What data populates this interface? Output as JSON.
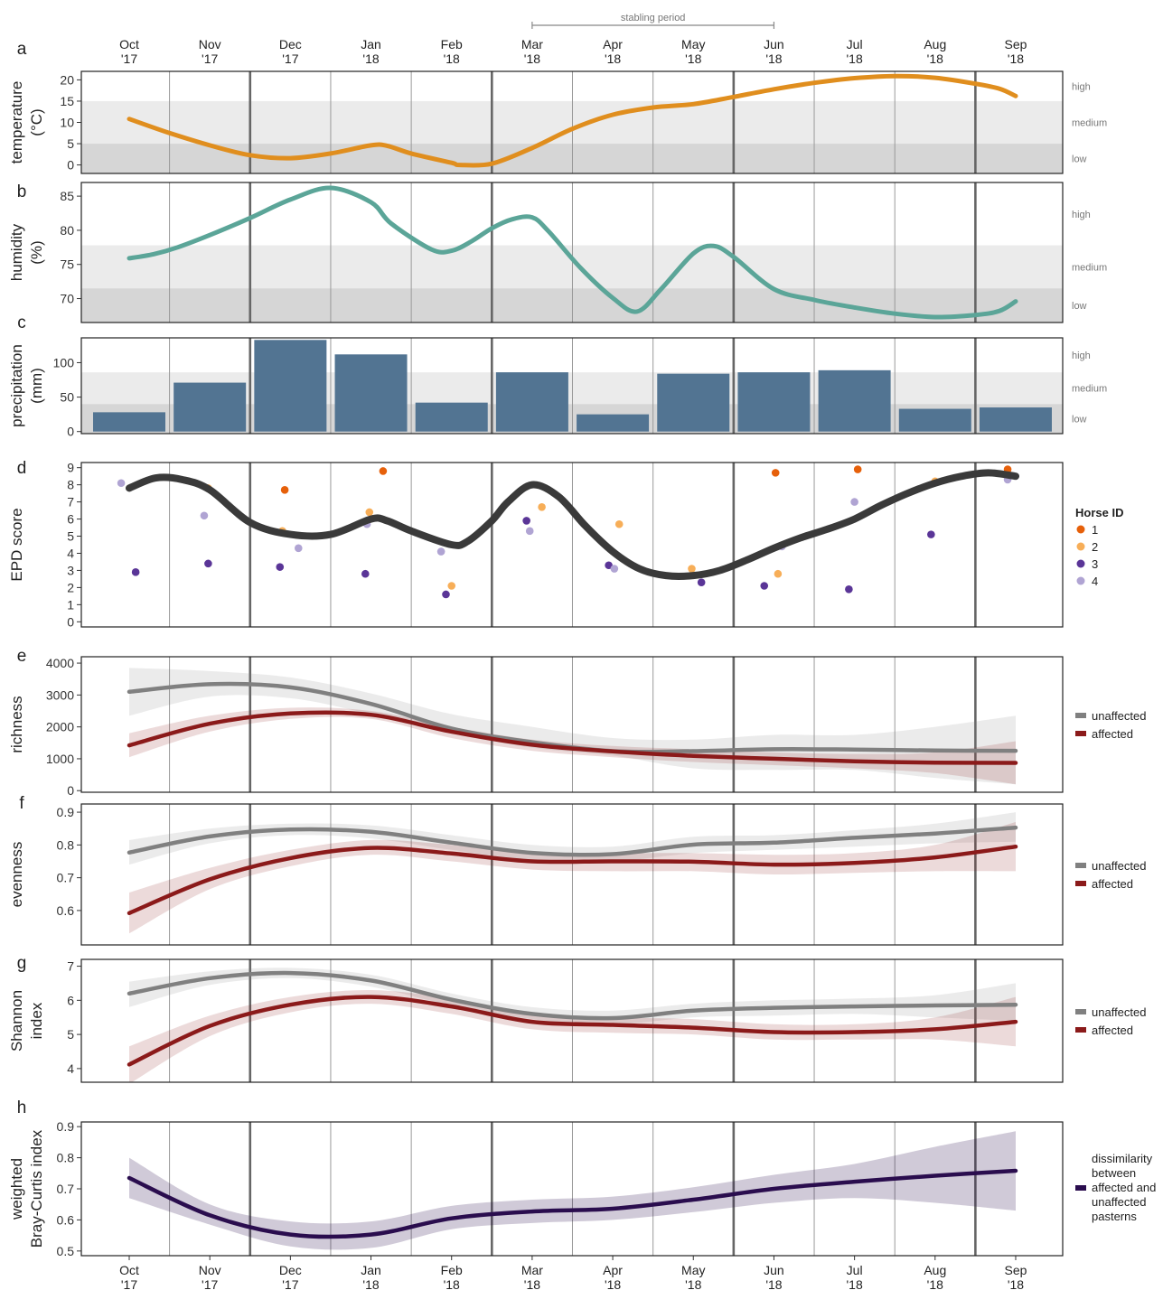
{
  "months": [
    {
      "m": "Oct",
      "y": "'17"
    },
    {
      "m": "Nov",
      "y": "'17"
    },
    {
      "m": "Dec",
      "y": "'17"
    },
    {
      "m": "Jan",
      "y": "'18"
    },
    {
      "m": "Feb",
      "y": "'18"
    },
    {
      "m": "Mar",
      "y": "'18"
    },
    {
      "m": "Apr",
      "y": "'18"
    },
    {
      "m": "May",
      "y": "'18"
    },
    {
      "m": "Jun",
      "y": "'18"
    },
    {
      "m": "Jul",
      "y": "'18"
    },
    {
      "m": "Aug",
      "y": "'18"
    },
    {
      "m": "Sep",
      "y": "'18"
    }
  ],
  "stabling": {
    "label": "stabling period",
    "from": 5,
    "to": 8
  },
  "season_boundaries": [
    1.5,
    4.5,
    7.5,
    10.5
  ],
  "colors": {
    "temperature": "#E08E1E",
    "humidity": "#5BA598",
    "precipitation": "#527492",
    "epd": "#3a3a3a",
    "unaffected": "#808080",
    "affected": "#8B1A1A",
    "braycurtis": "#2A0D4E",
    "horse1": "#E6600A",
    "horse2": "#F7AE58",
    "horse3": "#5A3597",
    "horse4": "#B0A4D3",
    "band_high": "#ffffff",
    "band_medium": "#ebebeb",
    "band_low": "#d6d6d6"
  },
  "chart_data": [
    {
      "panel": "a",
      "type": "line",
      "ylabel": [
        "temperature",
        "(°C)"
      ],
      "ylim": [
        -2,
        22
      ],
      "yticks": [
        0,
        5,
        10,
        15,
        20
      ],
      "bands": [
        {
          "label": "high",
          "from": 15,
          "to": 22
        },
        {
          "label": "medium",
          "from": 5,
          "to": 15
        },
        {
          "label": "low",
          "from": -2,
          "to": 5
        }
      ],
      "x": [
        0,
        0.5,
        1,
        1.5,
        2,
        2.5,
        3,
        3.2,
        3.5,
        4,
        4.1,
        4.5,
        5,
        5.5,
        6,
        6.5,
        7,
        7.5,
        8,
        8.5,
        9,
        9.5,
        10,
        10.5,
        10.8,
        11
      ],
      "y": [
        10.8,
        7.5,
        4.6,
        2.3,
        1.6,
        2.7,
        4.6,
        4.5,
        2.7,
        0.5,
        0,
        0.3,
        4.0,
        8.5,
        11.8,
        13.5,
        14.3,
        16.0,
        17.8,
        19.3,
        20.4,
        20.9,
        20.5,
        19.1,
        17.9,
        16.2
      ],
      "color": "temperature"
    },
    {
      "panel": "b",
      "type": "line",
      "ylabel": [
        "humidity",
        "(%)"
      ],
      "ylim": [
        66.5,
        87
      ],
      "yticks": [
        70,
        75,
        80,
        85
      ],
      "bands": [
        {
          "label": "high",
          "from": 77.8,
          "to": 87
        },
        {
          "label": "medium",
          "from": 71.5,
          "to": 77.8
        },
        {
          "label": "low",
          "from": 66.5,
          "to": 71.5
        }
      ],
      "x": [
        0,
        0.3,
        0.6,
        1,
        1.5,
        2,
        2.5,
        3,
        3.25,
        3.75,
        4,
        4.25,
        4.5,
        4.75,
        5,
        5.2,
        5.6,
        6,
        6.3,
        6.6,
        7,
        7.25,
        7.5,
        8,
        8.5,
        9,
        9.5,
        10,
        10.5,
        10.8,
        11
      ],
      "y": [
        75.9,
        76.5,
        77.5,
        79.3,
        81.8,
        84.5,
        86.2,
        84.1,
        81.0,
        77.2,
        77.0,
        78.4,
        80.3,
        81.6,
        81.9,
        79.9,
        74.5,
        70.1,
        68.1,
        71.4,
        76.6,
        77.7,
        76.1,
        71.4,
        69.8,
        68.7,
        67.8,
        67.3,
        67.6,
        68.2,
        69.6
      ],
      "color": "humidity"
    },
    {
      "panel": "c",
      "type": "bar",
      "ylabel": [
        "precipitation",
        "(mm)"
      ],
      "ylim": [
        -3,
        136
      ],
      "yticks": [
        0,
        50,
        100
      ],
      "bands": [
        {
          "label": "high",
          "from": 86,
          "to": 136
        },
        {
          "label": "medium",
          "from": 40,
          "to": 86
        },
        {
          "label": "low",
          "from": -3,
          "to": 40
        }
      ],
      "values": [
        28,
        71,
        133,
        112,
        42,
        86,
        25,
        84,
        86,
        89,
        33,
        35
      ],
      "color": "precipitation"
    },
    {
      "panel": "d",
      "type": "scatter",
      "ylabel": [
        "EPD score"
      ],
      "ylim": [
        -0.3,
        9.3
      ],
      "yticks": [
        0,
        1,
        2,
        3,
        4,
        5,
        6,
        7,
        8,
        9
      ],
      "legend_title": "Horse ID",
      "horses": [
        {
          "name": "1",
          "color": "horse1",
          "points": [
            [
              1.93,
              7.7
            ],
            [
              3.15,
              8.8
            ],
            [
              8.02,
              8.7
            ],
            [
              9.04,
              8.9
            ],
            [
              10.9,
              8.9
            ]
          ]
        },
        {
          "name": "2",
          "color": "horse2",
          "points": [
            [
              0.98,
              7.8
            ],
            [
              1.9,
              5.3
            ],
            [
              2.98,
              6.4
            ],
            [
              4.0,
              2.1
            ],
            [
              5.12,
              6.7
            ],
            [
              6.08,
              5.7
            ],
            [
              6.98,
              3.1
            ],
            [
              8.05,
              2.8
            ],
            [
              10.0,
              8.2
            ]
          ]
        },
        {
          "name": "3",
          "color": "horse3",
          "points": [
            [
              0.08,
              2.9
            ],
            [
              0.98,
              3.4
            ],
            [
              1.87,
              3.2
            ],
            [
              2.93,
              2.8
            ],
            [
              3.93,
              1.6
            ],
            [
              4.93,
              5.9
            ],
            [
              5.95,
              3.3
            ],
            [
              7.1,
              2.3
            ],
            [
              7.88,
              2.1
            ],
            [
              8.93,
              1.9
            ],
            [
              9.95,
              5.1
            ]
          ]
        },
        {
          "name": "4",
          "color": "horse4",
          "points": [
            [
              -0.1,
              8.1
            ],
            [
              0.93,
              6.2
            ],
            [
              2.1,
              4.3
            ],
            [
              2.95,
              5.7
            ],
            [
              3.87,
              4.1
            ],
            [
              4.97,
              5.3
            ],
            [
              6.02,
              3.1
            ],
            [
              8.1,
              4.4
            ],
            [
              9.0,
              7.0
            ],
            [
              10.9,
              8.3
            ]
          ]
        }
      ],
      "trend_x": [
        0,
        0.33,
        0.66,
        1,
        1.5,
        2,
        2.5,
        3,
        3.2,
        3.5,
        4,
        4.2,
        4.5,
        4.7,
        5,
        5.33,
        5.66,
        6,
        6.33,
        6.66,
        7,
        7.33,
        7.66,
        8,
        8.33,
        8.66,
        9,
        9.33,
        9.66,
        10,
        10.33,
        10.66,
        11
      ],
      "trend_y": [
        7.8,
        8.4,
        8.3,
        7.7,
        5.8,
        5.1,
        5.1,
        6.0,
        5.9,
        5.3,
        4.5,
        4.7,
        5.9,
        7.0,
        8.0,
        7.3,
        5.6,
        4.1,
        3.1,
        2.7,
        2.7,
        3.0,
        3.6,
        4.3,
        4.9,
        5.4,
        6.0,
        6.8,
        7.5,
        8.1,
        8.5,
        8.7,
        8.5
      ],
      "color": "epd"
    },
    {
      "panel": "e",
      "type": "line",
      "ylabel": [
        "richness"
      ],
      "ylim": [
        -50,
        4200
      ],
      "yticks": [
        0,
        1000,
        2000,
        3000,
        4000
      ],
      "x": [
        0,
        1,
        2,
        3,
        4,
        5,
        6,
        7,
        8,
        9,
        10,
        11
      ],
      "series": [
        {
          "name": "unaffected",
          "color": "unaffected",
          "values": [
            3100,
            3340,
            3240,
            2720,
            1950,
            1520,
            1240,
            1240,
            1300,
            1290,
            1260,
            1250
          ],
          "lower": [
            2350,
            2950,
            2900,
            2400,
            1800,
            1350,
            1100,
            700,
            650,
            650,
            400,
            200
          ],
          "upper": [
            3850,
            3750,
            3550,
            3050,
            2400,
            2000,
            1650,
            1600,
            1750,
            1750,
            2000,
            2350
          ]
        },
        {
          "name": "affected",
          "color": "affected",
          "values": [
            1420,
            2100,
            2420,
            2380,
            1850,
            1440,
            1230,
            1090,
            1000,
            920,
            880,
            870
          ],
          "lower": [
            1050,
            1850,
            2250,
            2250,
            1650,
            1250,
            1050,
            900,
            800,
            700,
            550,
            200
          ],
          "upper": [
            1800,
            2350,
            2600,
            2500,
            2000,
            1600,
            1400,
            1300,
            1200,
            1150,
            1200,
            1550
          ]
        }
      ]
    },
    {
      "panel": "f",
      "type": "line",
      "ylabel": [
        "evenness"
      ],
      "ylim": [
        0.495,
        0.925
      ],
      "yticks": [
        0.6,
        0.7,
        0.8,
        0.9
      ],
      "x": [
        0,
        1,
        2,
        3,
        4,
        5,
        6,
        7,
        8,
        9,
        10,
        11
      ],
      "series": [
        {
          "name": "unaffected",
          "color": "unaffected",
          "values": [
            0.777,
            0.826,
            0.847,
            0.84,
            0.807,
            0.776,
            0.772,
            0.801,
            0.807,
            0.822,
            0.835,
            0.853
          ],
          "lower": [
            0.74,
            0.805,
            0.83,
            0.82,
            0.785,
            0.755,
            0.75,
            0.775,
            0.785,
            0.795,
            0.805,
            0.81
          ],
          "upper": [
            0.815,
            0.85,
            0.865,
            0.86,
            0.83,
            0.8,
            0.795,
            0.825,
            0.83,
            0.845,
            0.865,
            0.9
          ]
        },
        {
          "name": "affected",
          "color": "affected",
          "values": [
            0.592,
            0.695,
            0.76,
            0.791,
            0.774,
            0.75,
            0.75,
            0.749,
            0.74,
            0.745,
            0.762,
            0.795
          ],
          "lower": [
            0.53,
            0.665,
            0.735,
            0.77,
            0.75,
            0.725,
            0.72,
            0.72,
            0.71,
            0.715,
            0.72,
            0.72
          ],
          "upper": [
            0.655,
            0.73,
            0.785,
            0.815,
            0.8,
            0.775,
            0.775,
            0.775,
            0.77,
            0.775,
            0.8,
            0.87
          ]
        }
      ]
    },
    {
      "panel": "g",
      "type": "line",
      "ylabel": [
        "Shannon",
        "index"
      ],
      "ylim": [
        3.6,
        7.2
      ],
      "yticks": [
        4,
        5,
        6,
        7
      ],
      "x": [
        0,
        1,
        2,
        3,
        4,
        5,
        6,
        7,
        8,
        9,
        10,
        11
      ],
      "series": [
        {
          "name": "unaffected",
          "color": "unaffected",
          "values": [
            6.2,
            6.65,
            6.8,
            6.58,
            6.02,
            5.6,
            5.48,
            5.7,
            5.78,
            5.82,
            5.85,
            5.87
          ],
          "lower": [
            5.8,
            6.45,
            6.65,
            6.4,
            5.85,
            5.45,
            5.3,
            5.5,
            5.55,
            5.6,
            5.5,
            5.4
          ],
          "upper": [
            6.55,
            6.85,
            6.95,
            6.75,
            6.2,
            5.8,
            5.7,
            5.9,
            6.0,
            6.05,
            6.15,
            6.5
          ]
        },
        {
          "name": "affected",
          "color": "affected",
          "values": [
            4.12,
            5.25,
            5.87,
            6.1,
            5.82,
            5.37,
            5.28,
            5.2,
            5.07,
            5.07,
            5.15,
            5.37
          ],
          "lower": [
            3.55,
            4.95,
            5.65,
            5.9,
            5.6,
            5.15,
            5.05,
            5.0,
            4.85,
            4.85,
            4.85,
            4.65
          ],
          "upper": [
            4.65,
            5.55,
            6.1,
            6.3,
            6.05,
            5.6,
            5.5,
            5.45,
            5.3,
            5.3,
            5.5,
            6.1
          ]
        }
      ]
    },
    {
      "panel": "h",
      "type": "line",
      "ylabel": [
        "weighted",
        "Bray-Curtis index"
      ],
      "ylim": [
        0.485,
        0.915
      ],
      "yticks": [
        0.5,
        0.6,
        0.7,
        0.8,
        0.9
      ],
      "x": [
        0,
        1,
        2,
        3,
        4,
        5,
        6,
        7,
        8,
        9,
        10,
        11
      ],
      "series": [
        {
          "name": "dissimilarity between affected and unaffected pasterns",
          "legend_lines": [
            "dissimilarity",
            "between",
            "affected and",
            "unaffected",
            "pasterns"
          ],
          "color": "braycurtis",
          "values": [
            0.735,
            0.615,
            0.553,
            0.553,
            0.605,
            0.627,
            0.636,
            0.665,
            0.7,
            0.723,
            0.742,
            0.758
          ],
          "lower": [
            0.67,
            0.585,
            0.515,
            0.51,
            0.57,
            0.59,
            0.6,
            0.625,
            0.655,
            0.67,
            0.655,
            0.63
          ],
          "upper": [
            0.8,
            0.65,
            0.595,
            0.595,
            0.645,
            0.665,
            0.675,
            0.705,
            0.745,
            0.78,
            0.835,
            0.885
          ]
        }
      ]
    }
  ]
}
